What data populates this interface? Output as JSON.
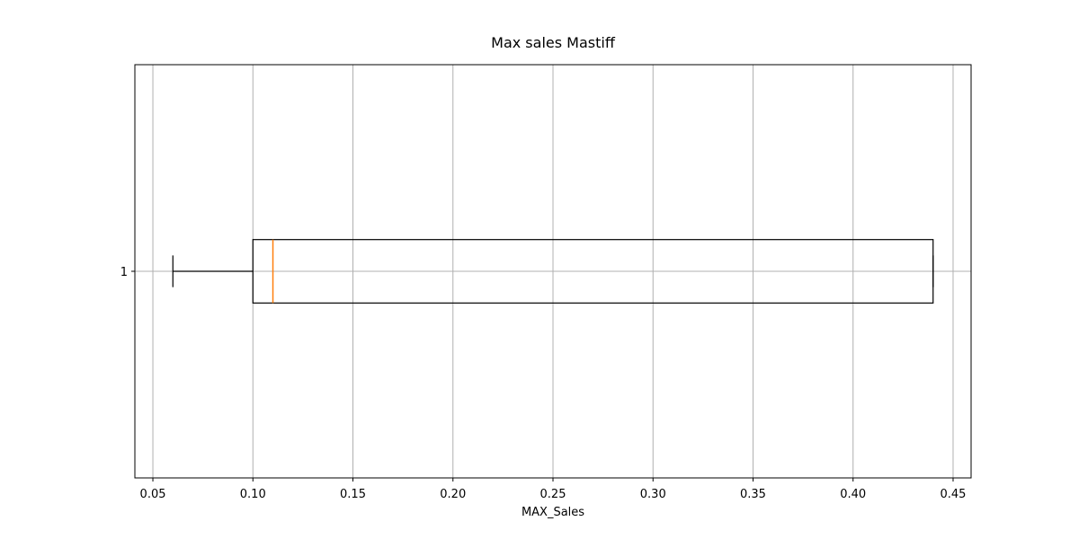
{
  "chart_data": {
    "type": "boxplot",
    "orientation": "horizontal",
    "title": "Max sales Mastiff",
    "xlabel": "MAX_Sales",
    "ylabel": "",
    "xlim": [
      0.041,
      0.459
    ],
    "xticks": [
      0.05,
      0.1,
      0.15,
      0.2,
      0.25,
      0.3,
      0.35,
      0.4,
      0.45
    ],
    "xtick_labels": [
      "0.05",
      "0.10",
      "0.15",
      "0.20",
      "0.25",
      "0.30",
      "0.35",
      "0.40",
      "0.45"
    ],
    "grid": true,
    "boxes": [
      {
        "category": "1",
        "whisker_low": 0.06,
        "q1": 0.1,
        "median": 0.11,
        "q3": 0.44,
        "whisker_high": 0.44
      }
    ],
    "colors": {
      "box": "#000000",
      "median": "#ff7f0e",
      "grid": "#b0b0b0"
    }
  }
}
